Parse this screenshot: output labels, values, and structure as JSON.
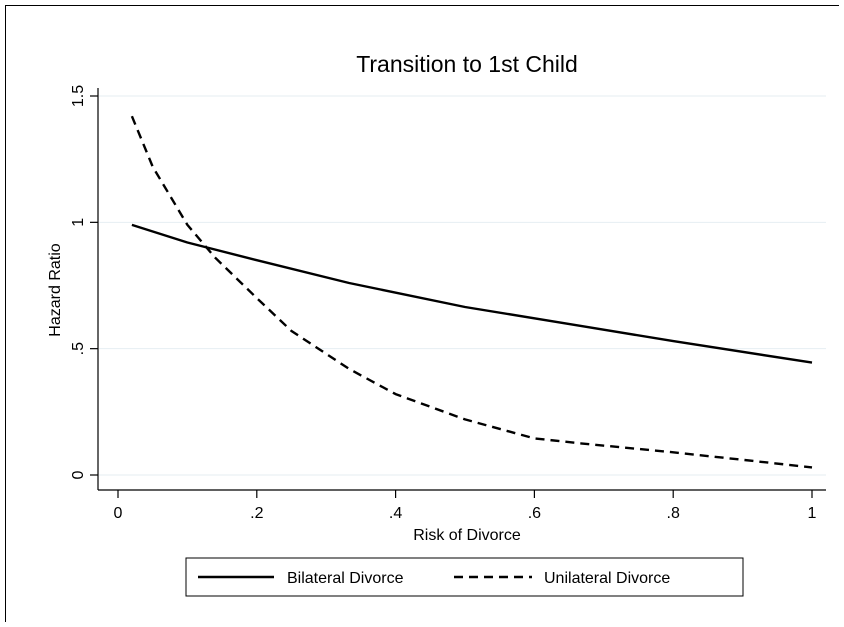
{
  "chart_data": {
    "type": "line",
    "title": "Transition to 1st Child",
    "xlabel": "Risk of Divorce",
    "ylabel": "Hazard Ratio",
    "xlim": [
      0,
      1
    ],
    "ylim": [
      0,
      1.5
    ],
    "xticks": [
      0,
      0.2,
      0.4,
      0.6,
      0.8,
      1
    ],
    "xtick_labels": [
      "0",
      ".2",
      ".4",
      ".6",
      ".8",
      "1"
    ],
    "yticks": [
      0,
      0.5,
      1,
      1.5
    ],
    "ytick_labels": [
      "0",
      ".5",
      "1",
      "1.5"
    ],
    "grid": "horizontal",
    "legend_position": "bottom",
    "series": [
      {
        "name": "Bilateral Divorce",
        "style": "solid",
        "color": "#000000",
        "x": [
          0.02,
          0.1,
          0.2,
          0.333,
          0.5,
          0.667,
          0.8,
          1.0
        ],
        "y": [
          0.99,
          0.92,
          0.85,
          0.76,
          0.665,
          0.59,
          0.53,
          0.445
        ]
      },
      {
        "name": "Unilateral Divorce",
        "style": "dashed",
        "color": "#000000",
        "x": [
          0.02,
          0.05,
          0.1,
          0.14,
          0.2,
          0.25,
          0.333,
          0.4,
          0.5,
          0.6,
          0.667,
          0.8,
          0.9,
          1.0
        ],
        "y": [
          1.42,
          1.22,
          0.99,
          0.86,
          0.7,
          0.57,
          0.42,
          0.32,
          0.22,
          0.145,
          0.125,
          0.09,
          0.06,
          0.03
        ]
      }
    ]
  }
}
